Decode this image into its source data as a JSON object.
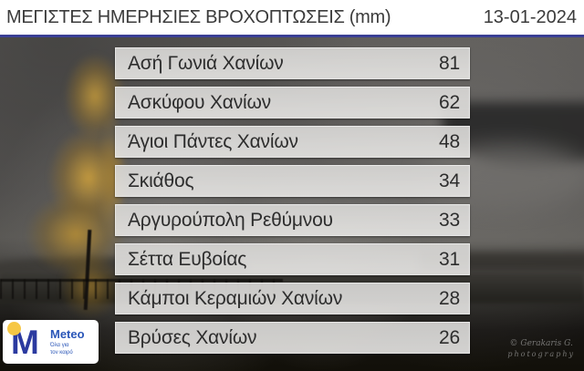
{
  "header": {
    "title": "ΜΕΓΙΣΤΕΣ ΗΜΕΡΗΣΙΕΣ ΒΡΟΧΟΠΤΩΣΕΙΣ (mm)",
    "date": "13-01-2024"
  },
  "chart_data": {
    "type": "table",
    "title": "ΜΕΓΙΣΤΕΣ ΗΜΕΡΗΣΙΕΣ ΒΡΟΧΟΠΤΩΣΕΙΣ (mm)",
    "date": "13-01-2024",
    "unit": "mm",
    "categories": [
      "Ασή Γωνιά Χανίων",
      "Ασκύφου Χανίων",
      "Άγιοι Πάντες Χανίων",
      "Σκιάθος",
      "Αργυρούπολη Ρεθύμνου",
      "Σέττα Ευβοίας",
      "Κάμποι Κεραμιών Χανίων",
      "Βρύσες Χανίων"
    ],
    "values": [
      81,
      62,
      48,
      34,
      33,
      31,
      28,
      26
    ],
    "rows": [
      {
        "name": "Ασή Γωνιά Χανίων",
        "value": "81"
      },
      {
        "name": "Ασκύφου Χανίων",
        "value": "62"
      },
      {
        "name": "Άγιοι Πάντες Χανίων",
        "value": "48"
      },
      {
        "name": "Σκιάθος",
        "value": "34"
      },
      {
        "name": "Αργυρούπολη Ρεθύμνου",
        "value": "33"
      },
      {
        "name": "Σέττα Ευβοίας",
        "value": "31"
      },
      {
        "name": "Κάμποι Κεραμιών Χανίων",
        "value": "28"
      },
      {
        "name": "Βρύσες Χανίων",
        "value": "26"
      }
    ]
  },
  "logo": {
    "brand": "Meteo",
    "monogram": "M",
    "tagline_line1": "Όλα για",
    "tagline_line2": "τον καιρό"
  },
  "watermark": {
    "line1": "© Gerakaris G.",
    "line2": "photography"
  },
  "colors": {
    "accent_line": "#3a3f95",
    "logo_blue": "#2b3aa0",
    "logo_yellow": "#f6c744",
    "row_background": "#dddcda",
    "text_dark": "#2d2d2d"
  }
}
